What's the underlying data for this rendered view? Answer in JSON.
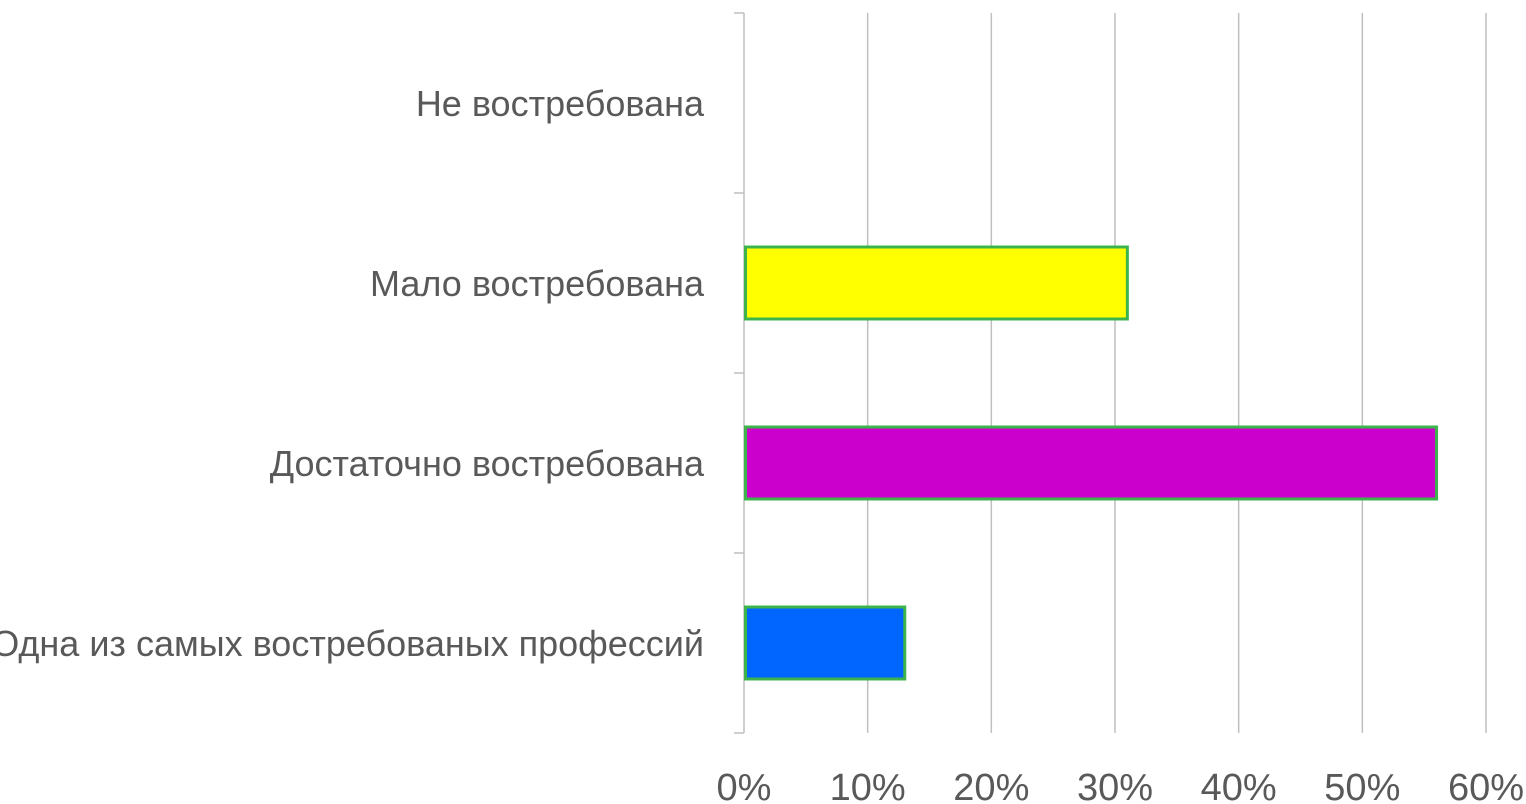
{
  "chart_data": {
    "type": "bar",
    "orientation": "horizontal",
    "categories": [
      "Не востребована",
      "Мало востребована",
      "Достаточно востребована",
      "Одна из самых востребованых профессий"
    ],
    "values": [
      0,
      31,
      56,
      13
    ],
    "bar_colors": [
      "#ffff00",
      "#ffff00",
      "#cc00cc",
      "#0066ff"
    ],
    "bar_border_color": "#3cb44b",
    "title": "",
    "xlabel": "",
    "ylabel": "",
    "xlim": [
      0,
      60
    ],
    "x_ticks": [
      0,
      10,
      20,
      30,
      40,
      50,
      60
    ],
    "x_tick_labels": [
      "0%",
      "10%",
      "20%",
      "30%",
      "40%",
      "50%",
      "60%"
    ],
    "grid": true,
    "legend": "none"
  }
}
